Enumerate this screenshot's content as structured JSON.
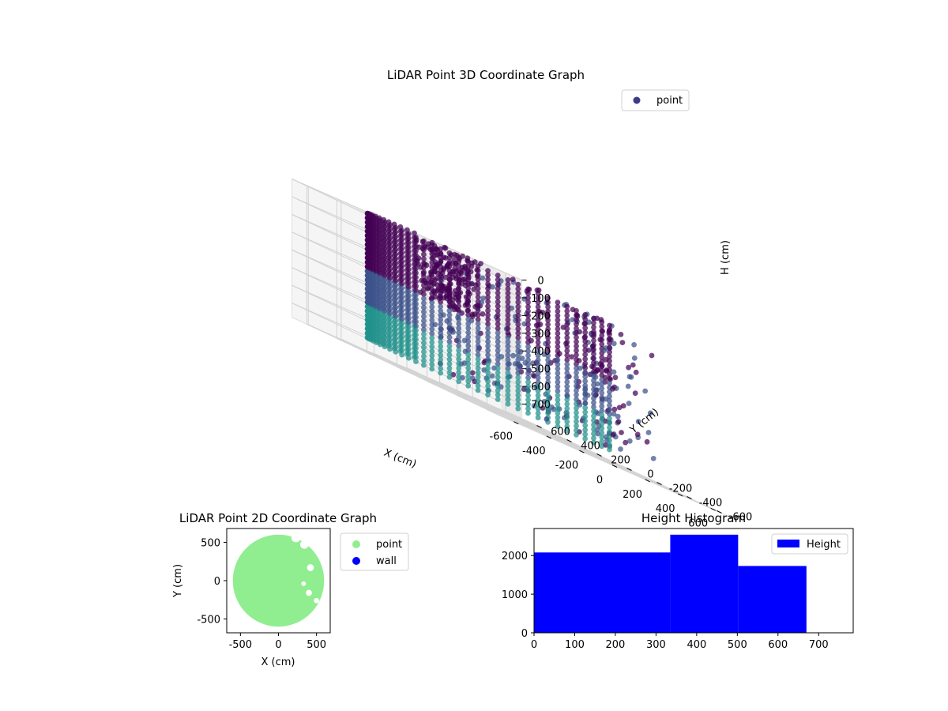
{
  "chart_data": [
    {
      "type": "scatter3d",
      "title": "LiDAR Point 3D Coordinate Graph",
      "xlabel": "X (cm)",
      "ylabel": "Y (cm)",
      "zlabel": "H (cm)",
      "xlim": [
        -700,
        700
      ],
      "ylim": [
        -700,
        700
      ],
      "zlim": [
        0,
        780
      ],
      "z_inverted": true,
      "x_ticks": [
        -600,
        -400,
        -200,
        0,
        200,
        400,
        600
      ],
      "y_ticks": [
        -600,
        -400,
        -200,
        0,
        200,
        400,
        600
      ],
      "z_ticks": [
        0,
        100,
        200,
        300,
        400,
        500,
        600,
        700
      ],
      "legend": {
        "entries": [
          "point"
        ],
        "placement": "top-right"
      },
      "colors": {
        "point": "#3b3b8a",
        "deep": "#440154",
        "mid": "#3b528b",
        "light": "#21918c"
      },
      "series": [
        {
          "name": "point",
          "shape": "half-cylinder shell of points, dense on -X side, scattered on +X side",
          "radius": 650,
          "h_range": [
            0,
            700
          ]
        }
      ],
      "outlier": {
        "x": 120,
        "y": -100,
        "h": 700
      }
    },
    {
      "type": "scatter",
      "title": "LiDAR Point 2D Coordinate Graph",
      "xlabel": "X (cm)",
      "ylabel": "Y (cm)",
      "xlim": [
        -680,
        680
      ],
      "ylim": [
        -680,
        680
      ],
      "x_ticks": [
        -500,
        0,
        500
      ],
      "y_ticks": [
        -500,
        0,
        500
      ],
      "legend": {
        "entries": [
          "point",
          "wall"
        ],
        "placement": "outside-right"
      },
      "colors": {
        "point": "#90ee90",
        "wall": "#0000ff"
      },
      "series": [
        {
          "name": "point",
          "shape": "filled disk",
          "radius": 600
        },
        {
          "name": "wall",
          "values": []
        }
      ]
    },
    {
      "type": "bar",
      "title": "Height Histogram",
      "xlabel": "",
      "ylabel": "",
      "xlim": [
        0,
        785
      ],
      "ylim": [
        0,
        2700
      ],
      "x_ticks": [
        0,
        100,
        200,
        300,
        400,
        500,
        600,
        700
      ],
      "y_ticks": [
        0,
        1000,
        2000
      ],
      "bins": [
        {
          "x0": 0,
          "x1": 335,
          "value": 2080
        },
        {
          "x0": 335,
          "x1": 502,
          "value": 2540
        },
        {
          "x0": 502,
          "x1": 670,
          "value": 1730
        }
      ],
      "legend": {
        "entries": [
          "Height"
        ],
        "placement": "top-right"
      },
      "colors": {
        "bar": "#0000ff"
      }
    }
  ]
}
